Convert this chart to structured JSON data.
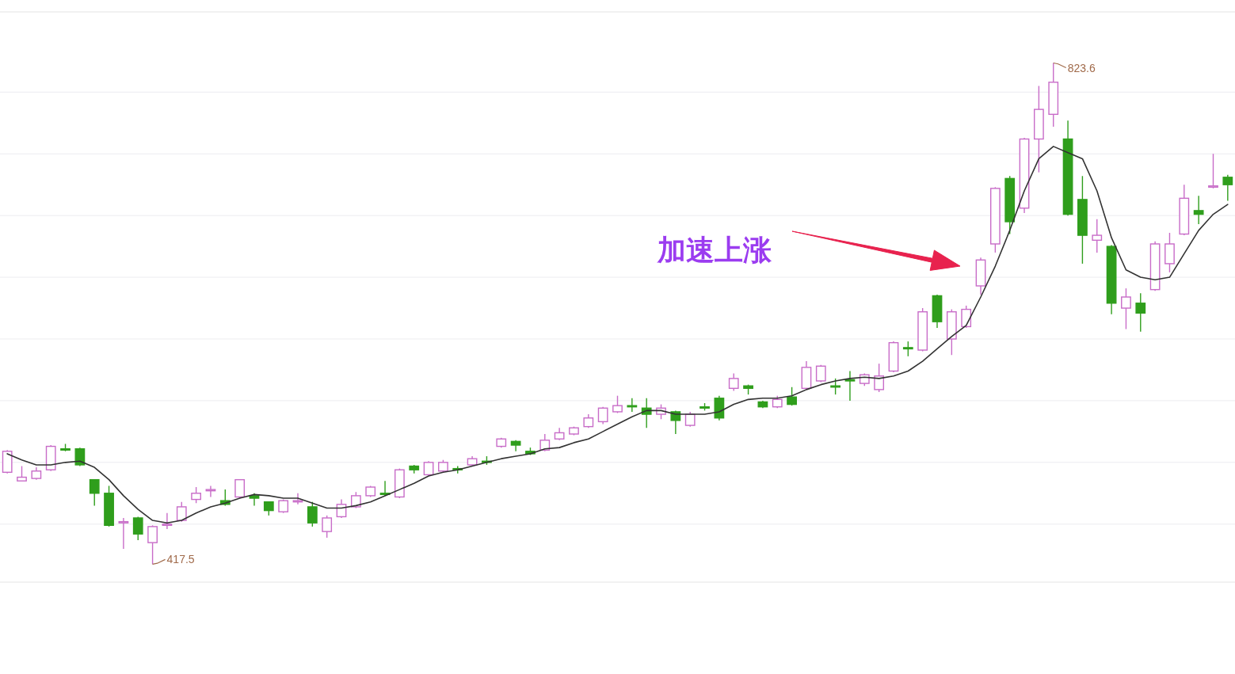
{
  "chart_data": {
    "type": "candlestick",
    "categories": [
      null,
      null,
      null,
      null,
      null,
      null,
      null,
      null,
      null,
      null,
      null,
      null,
      null,
      null,
      null,
      null,
      null,
      null,
      null,
      null,
      null,
      null,
      null,
      null,
      null,
      null,
      null,
      null,
      null,
      null,
      null,
      null,
      null,
      null,
      null,
      null,
      null,
      null,
      null,
      null,
      null,
      null,
      null,
      null,
      null,
      null,
      null,
      null,
      null,
      null,
      null,
      null,
      null,
      null,
      null,
      null,
      null,
      null,
      null,
      null,
      null,
      null,
      null,
      null,
      null,
      null,
      null,
      null,
      null,
      null,
      null,
      null,
      null,
      null,
      null,
      null,
      null,
      null,
      null,
      null,
      null,
      null,
      null,
      null,
      null
    ],
    "ohlc": [
      [
        492,
        510,
        491,
        509
      ],
      [
        485,
        497,
        485,
        488
      ],
      [
        487,
        496,
        486,
        493
      ],
      [
        494,
        514,
        493,
        513
      ],
      [
        511,
        515,
        509,
        510
      ],
      [
        511,
        512,
        497,
        498
      ],
      [
        486,
        486,
        465,
        475
      ],
      [
        475,
        481,
        448,
        449
      ],
      [
        451,
        455,
        430,
        452
      ],
      [
        455,
        456,
        437,
        442
      ],
      [
        435,
        449,
        417.5,
        448
      ],
      [
        449,
        459,
        446,
        450
      ],
      [
        453,
        468,
        452,
        464
      ],
      [
        470,
        480,
        467,
        475
      ],
      [
        477,
        481,
        472,
        478
      ],
      [
        469,
        478,
        465,
        466
      ],
      [
        472,
        486,
        471,
        486
      ],
      [
        473,
        475,
        465,
        471
      ],
      [
        468,
        468,
        457,
        461
      ],
      [
        460,
        470,
        459,
        469
      ],
      [
        468,
        475,
        466,
        469
      ],
      [
        464,
        468,
        448,
        451
      ],
      [
        444,
        457,
        439,
        455
      ],
      [
        456,
        470,
        455,
        466
      ],
      [
        464,
        476,
        463,
        473
      ],
      [
        473,
        481,
        472,
        480
      ],
      [
        475,
        485,
        473,
        474
      ],
      [
        472,
        495,
        471,
        494
      ],
      [
        497,
        498,
        491,
        494
      ],
      [
        490,
        501,
        489,
        500
      ],
      [
        493,
        502,
        492,
        500
      ],
      [
        495,
        497,
        491,
        494
      ],
      [
        498,
        505,
        497,
        503
      ],
      [
        501,
        505,
        498,
        500
      ],
      [
        513,
        520,
        512,
        519
      ],
      [
        517,
        518,
        509,
        514
      ],
      [
        509,
        512,
        506,
        507
      ],
      [
        510,
        523,
        509,
        518
      ],
      [
        519,
        528,
        518,
        524
      ],
      [
        523,
        529,
        522,
        528
      ],
      [
        529,
        539,
        528,
        536
      ],
      [
        533,
        545,
        531,
        544
      ],
      [
        541,
        554,
        540,
        546
      ],
      [
        546,
        552,
        541,
        545
      ],
      [
        544,
        552,
        528,
        539
      ],
      [
        539,
        547,
        535,
        544
      ],
      [
        541,
        542,
        523,
        534
      ],
      [
        530,
        541,
        529,
        539
      ],
      [
        545,
        548,
        542,
        544
      ],
      [
        552,
        554,
        534,
        536
      ],
      [
        560,
        572,
        558,
        568
      ],
      [
        562,
        563,
        555,
        560
      ],
      [
        549,
        550,
        544,
        545
      ],
      [
        545,
        554,
        544,
        551
      ],
      [
        553,
        561,
        546,
        547
      ],
      [
        560,
        582,
        559,
        577
      ],
      [
        566,
        579,
        565,
        578
      ],
      [
        562,
        568,
        555,
        561
      ],
      [
        567,
        574,
        550,
        566
      ],
      [
        564,
        572,
        562,
        571
      ],
      [
        559,
        580,
        557,
        570
      ],
      [
        574,
        598,
        573,
        597
      ],
      [
        593,
        598,
        586,
        592
      ],
      [
        591,
        625,
        590,
        622
      ],
      [
        635,
        636,
        609,
        614
      ],
      [
        600,
        624,
        587,
        622
      ],
      [
        610,
        627,
        609,
        624
      ],
      [
        643,
        666,
        636,
        664
      ],
      [
        677,
        723,
        670,
        722
      ],
      [
        730,
        732,
        685,
        695
      ],
      [
        706,
        763,
        702,
        762
      ],
      [
        762,
        805,
        735,
        786
      ],
      [
        782,
        823.6,
        772,
        808
      ],
      [
        762,
        777,
        700,
        701
      ],
      [
        713,
        732,
        661,
        684
      ],
      [
        680,
        697,
        670,
        684
      ],
      [
        675,
        676,
        620,
        629
      ],
      [
        625,
        641,
        608,
        634
      ],
      [
        629,
        637,
        606,
        621
      ],
      [
        640,
        679,
        639,
        677
      ],
      [
        661,
        686,
        654,
        677
      ],
      [
        685,
        725,
        684,
        714
      ],
      [
        704,
        716,
        693,
        701
      ],
      [
        723,
        750,
        722,
        724
      ],
      [
        731,
        733,
        712,
        725
      ]
    ],
    "series": [
      {
        "type": "line",
        "color": "#333333",
        "values": [
          507,
          502,
          498,
          498,
          500,
          501,
          496,
          486,
          473,
          462,
          453,
          451,
          453,
          459,
          464,
          467,
          471,
          474,
          473,
          471,
          471,
          467,
          463,
          463,
          465,
          468,
          473,
          478,
          483,
          489,
          492,
          494,
          497,
          500,
          503,
          505,
          507,
          511,
          512,
          516,
          519,
          525,
          531,
          537,
          542,
          542,
          539,
          539,
          539,
          541,
          547,
          551,
          552,
          552,
          554,
          559,
          563,
          566,
          568,
          569,
          568,
          570,
          574,
          582,
          592,
          602,
          611,
          634,
          659,
          688,
          720,
          746,
          756,
          751,
          746,
          720,
          682,
          656,
          650,
          648,
          650,
          669,
          688,
          701,
          709
        ]
      }
    ],
    "ylim": [
      403,
      865
    ],
    "yticks": [
      {
        "value": 450,
        "label": null
      },
      {
        "value": 500,
        "label": null
      },
      {
        "value": 550,
        "label": null
      },
      {
        "value": 600,
        "label": null
      },
      {
        "value": 650,
        "label": null
      },
      {
        "value": 700,
        "label": null
      },
      {
        "value": 750,
        "label": null
      },
      {
        "value": 800,
        "label": null
      }
    ],
    "grid": "y",
    "annotations": [
      "823.6",
      "417.5",
      "加速上涨"
    ]
  }
}
